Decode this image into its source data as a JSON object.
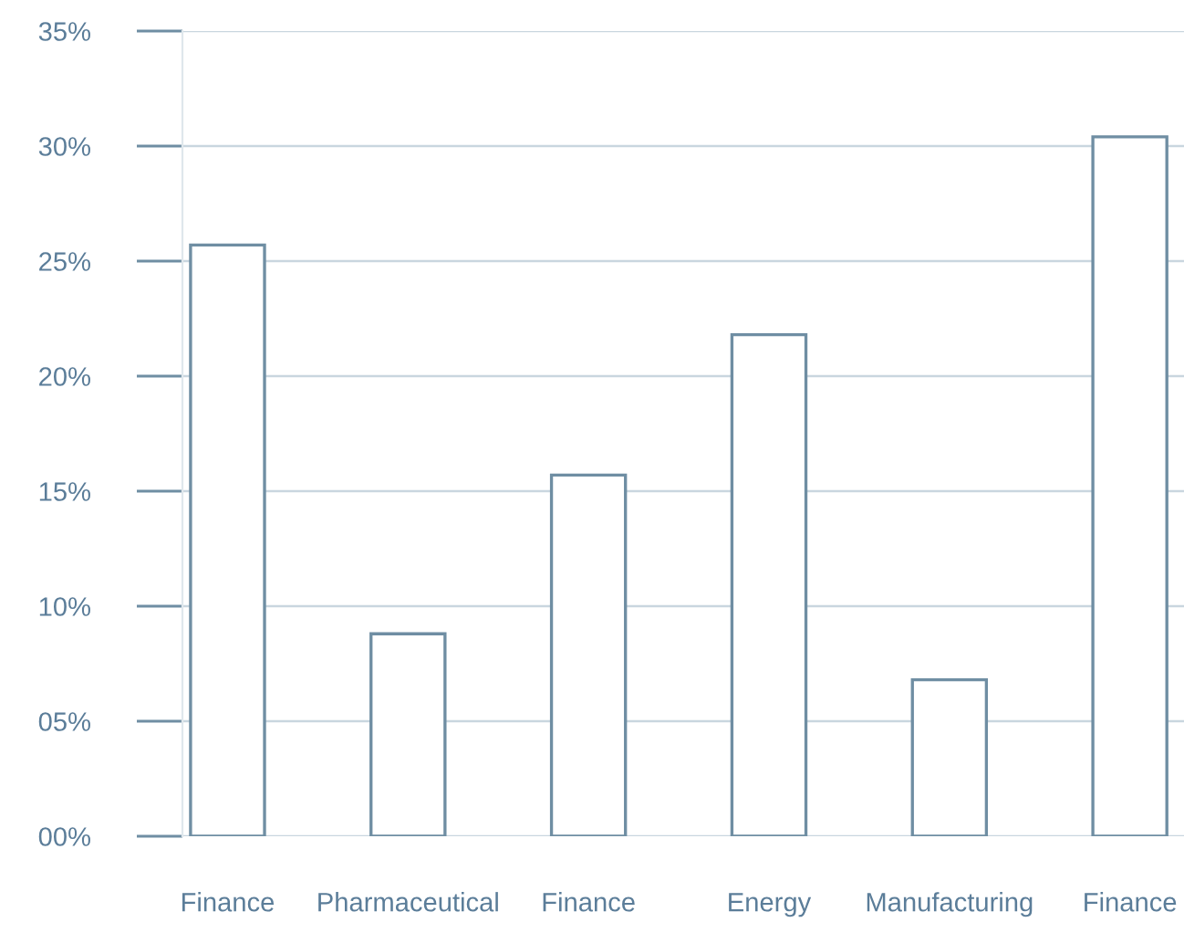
{
  "chart_data": {
    "type": "bar",
    "categories": [
      "Finance",
      "Pharmaceutical",
      "Finance",
      "Energy",
      "Manufacturing",
      "Finance"
    ],
    "values": [
      25.7,
      8.8,
      15.7,
      21.8,
      6.8,
      30.4
    ],
    "color": "#ffffff",
    "ylim": [
      0,
      35
    ],
    "yticks": [
      {
        "value": 0,
        "label": "00%"
      },
      {
        "value": 5,
        "label": "05%"
      },
      {
        "value": 10,
        "label": "10%"
      },
      {
        "value": 15,
        "label": "15%"
      },
      {
        "value": 20,
        "label": "20%"
      },
      {
        "value": 25,
        "label": "25%"
      },
      {
        "value": 30,
        "label": "30%"
      },
      {
        "value": 35,
        "label": "35%"
      }
    ],
    "grid": "y",
    "legend": false
  }
}
